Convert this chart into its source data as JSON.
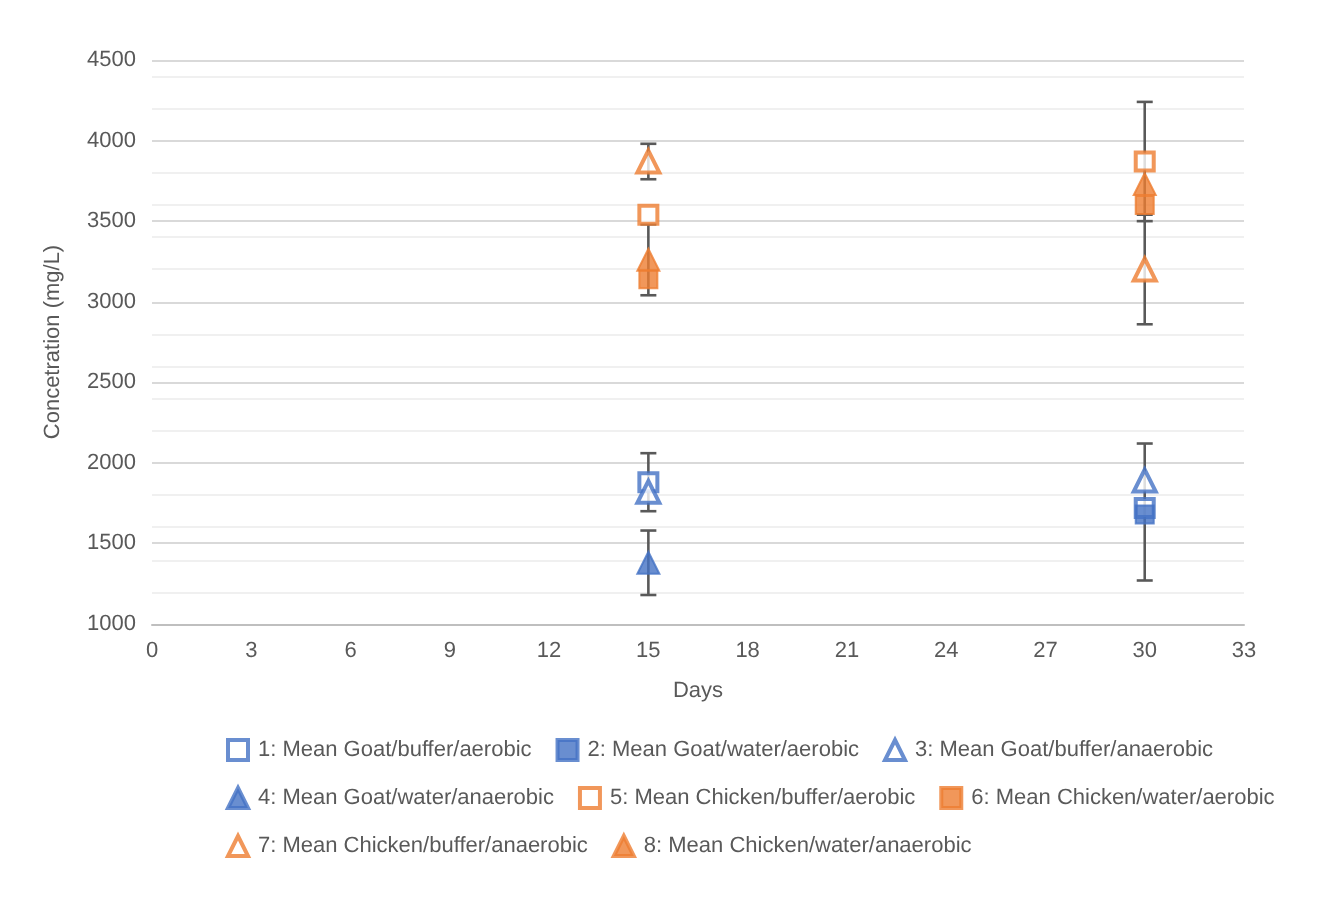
{
  "chart_data": {
    "type": "scatter",
    "xlabel": "Days",
    "ylabel": "Concetration (mg/L)",
    "x": [
      15,
      30
    ],
    "xlim": [
      0,
      33
    ],
    "xticks": [
      0,
      3,
      6,
      9,
      12,
      15,
      18,
      21,
      24,
      27,
      30,
      33
    ],
    "ylim": [
      1000,
      4500
    ],
    "yticks": [
      1000,
      1500,
      2000,
      2500,
      3000,
      3500,
      4000,
      4500
    ],
    "grid": "y",
    "legend": "bottom",
    "series": [
      {
        "name": "1: Mean Goat/buffer/aerobic",
        "color": "#4472c4",
        "marker": "square",
        "values": [
          1880,
          1720
        ],
        "errors": [
          180,
          null
        ]
      },
      {
        "name": "2: Mean Goat/water/aerobic",
        "color": "#4472c4",
        "marker": "square",
        "values": [
          null,
          1680
        ],
        "errors": [
          null,
          [
            1270,
            2120
          ]
        ]
      },
      {
        "name": "3: Mean Goat/buffer/anaerobic",
        "color": "#4472c4",
        "marker": "triangle",
        "values": [
          1820,
          1890
        ],
        "errors": [
          null,
          null
        ]
      },
      {
        "name": "4: Mean Goat/water/anaerobic",
        "color": "#4472c4",
        "marker": "triangle",
        "values": [
          1380,
          null
        ],
        "errors": [
          200,
          null
        ]
      },
      {
        "name": "5: Mean Chicken/buffer/aerobic",
        "color": "#ed7d31",
        "marker": "square",
        "values": [
          3540,
          3870
        ],
        "errors": [
          null,
          370
        ]
      },
      {
        "name": "6: Mean Chicken/water/aerobic",
        "color": "#ed7d31",
        "marker": "square",
        "values": [
          3140,
          3600
        ],
        "errors": [
          null,
          null
        ]
      },
      {
        "name": "7: Mean Chicken/buffer/anaerobic",
        "color": "#ed7d31",
        "marker": "triangle",
        "values": [
          3870,
          3200
        ],
        "errors": [
          110,
          340
        ]
      },
      {
        "name": "8: Mean Chicken/water/anaerobic",
        "color": "#ed7d31",
        "marker": "triangle",
        "values": [
          3260,
          3730
        ],
        "errors": [
          220,
          null
        ]
      }
    ]
  }
}
